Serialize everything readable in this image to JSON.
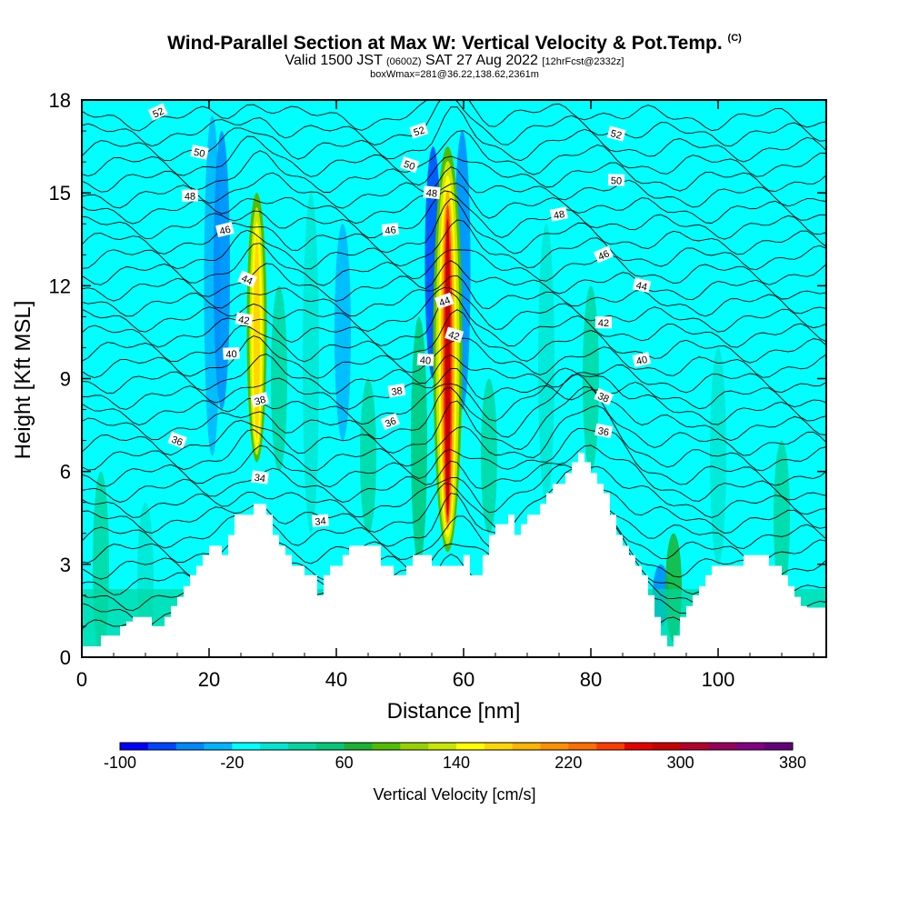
{
  "title": {
    "main": "Wind-Parallel Section at Max W: Vertical Velocity & Pot.Temp.",
    "copyright": "(C)",
    "valid_prefix": "Valid 1500 JST",
    "valid_utc": "(0600Z)",
    "valid_date": "SAT 27 Aug 2022",
    "forecast": "[12hrFcst@2332z]",
    "box": "boxWmax=281@36.22,138.62,2361m"
  },
  "chart_data": {
    "type": "heatmap",
    "xlabel": "Distance [nm]",
    "ylabel": "Height [Kft MSL]",
    "xlim": [
      0,
      117
    ],
    "ylim": [
      0,
      18
    ],
    "x_ticks": [
      0,
      20,
      40,
      60,
      80,
      100
    ],
    "y_ticks": [
      0,
      3,
      6,
      9,
      12,
      15,
      18
    ],
    "field": "Vertical Velocity [cm/s]",
    "contour_field": "Potential Temperature",
    "colorbar": {
      "label": "Vertical Velocity [cm/s]",
      "tick_labels": [
        "-100",
        "-20",
        "60",
        "140",
        "220",
        "300",
        "380"
      ],
      "colors": [
        "#0000ff",
        "#0044ff",
        "#0088ff",
        "#00b4ff",
        "#00ffff",
        "#00e6d2",
        "#00d7a0",
        "#00c878",
        "#19b432",
        "#50be00",
        "#96d200",
        "#c8e600",
        "#ffff00",
        "#ffd700",
        "#ffb400",
        "#ff9100",
        "#ff6e00",
        "#ff3c00",
        "#e60000",
        "#c80000",
        "#b4002d",
        "#96005a",
        "#820082",
        "#64007d"
      ]
    },
    "terrain": [
      [
        0,
        0.35
      ],
      [
        3,
        0.35
      ],
      [
        3,
        0.7
      ],
      [
        6,
        0.7
      ],
      [
        6,
        1
      ],
      [
        7,
        1
      ],
      [
        7,
        1.15
      ],
      [
        8,
        1.15
      ],
      [
        8,
        1.3
      ],
      [
        10,
        1.3
      ],
      [
        10,
        1.3
      ],
      [
        11,
        1.3
      ],
      [
        11,
        1
      ],
      [
        13,
        1
      ],
      [
        13,
        1.3
      ],
      [
        14,
        1.3
      ],
      [
        14,
        1.65
      ],
      [
        15,
        1.65
      ],
      [
        15,
        1.95
      ],
      [
        16,
        1.95
      ],
      [
        16,
        2.3
      ],
      [
        17,
        2.3
      ],
      [
        17,
        2.65
      ],
      [
        18,
        2.65
      ],
      [
        18,
        2.95
      ],
      [
        19,
        2.95
      ],
      [
        19,
        3.3
      ],
      [
        20,
        3.3
      ],
      [
        20,
        3.6
      ],
      [
        22,
        3.6
      ],
      [
        22,
        3.3
      ],
      [
        23,
        3.3
      ],
      [
        23,
        3.95
      ],
      [
        24,
        3.95
      ],
      [
        24,
        4.6
      ],
      [
        27,
        4.6
      ],
      [
        27,
        4.95
      ],
      [
        29,
        4.95
      ],
      [
        29,
        4.6
      ],
      [
        30,
        4.6
      ],
      [
        30,
        3.95
      ],
      [
        31,
        3.95
      ],
      [
        31,
        3.6
      ],
      [
        32,
        3.6
      ],
      [
        32,
        3.3
      ],
      [
        33,
        3.3
      ],
      [
        33,
        2.95
      ],
      [
        35,
        2.95
      ],
      [
        35,
        2.65
      ],
      [
        37,
        2.65
      ],
      [
        37,
        2
      ],
      [
        38,
        2
      ],
      [
        38,
        2.65
      ],
      [
        39,
        2.65
      ],
      [
        39,
        2.95
      ],
      [
        41,
        2.95
      ],
      [
        41,
        3.3
      ],
      [
        42,
        3.3
      ],
      [
        42,
        3.6
      ],
      [
        47,
        3.6
      ],
      [
        47,
        2.95
      ],
      [
        49,
        2.95
      ],
      [
        49,
        2.65
      ],
      [
        51,
        2.65
      ],
      [
        51,
        2.95
      ],
      [
        52,
        2.95
      ],
      [
        52,
        3.3
      ],
      [
        55,
        3.3
      ],
      [
        55,
        2.95
      ],
      [
        60,
        2.95
      ],
      [
        60,
        3.3
      ],
      [
        61,
        3.3
      ],
      [
        61,
        2.65
      ],
      [
        63,
        2.65
      ],
      [
        63,
        3.3
      ],
      [
        64,
        3.3
      ],
      [
        64,
        3.95
      ],
      [
        65,
        3.95
      ],
      [
        65,
        4.3
      ],
      [
        67,
        4.3
      ],
      [
        67,
        4.6
      ],
      [
        68,
        4.6
      ],
      [
        68,
        3.95
      ],
      [
        69,
        3.95
      ],
      [
        69,
        4.3
      ],
      [
        70,
        4.3
      ],
      [
        70,
        4.6
      ],
      [
        72,
        4.6
      ],
      [
        72,
        4.95
      ],
      [
        73,
        4.95
      ],
      [
        73,
        5.3
      ],
      [
        74,
        5.3
      ],
      [
        74,
        5.6
      ],
      [
        76,
        5.6
      ],
      [
        76,
        5.95
      ],
      [
        77,
        5.95
      ],
      [
        77,
        6.3
      ],
      [
        78,
        6.3
      ],
      [
        78,
        6.6
      ],
      [
        79,
        6.6
      ],
      [
        79,
        6.3
      ],
      [
        80,
        6.3
      ],
      [
        80,
        5.95
      ],
      [
        81,
        5.95
      ],
      [
        81,
        5.6
      ],
      [
        82,
        5.6
      ],
      [
        82,
        5.3
      ],
      [
        83,
        5.3
      ],
      [
        83,
        4.6
      ],
      [
        84,
        4.6
      ],
      [
        84,
        3.95
      ],
      [
        85,
        3.95
      ],
      [
        85,
        3.6
      ],
      [
        86,
        3.6
      ],
      [
        86,
        3.3
      ],
      [
        87,
        3.3
      ],
      [
        87,
        2.95
      ],
      [
        88,
        2.95
      ],
      [
        88,
        2.65
      ],
      [
        89,
        2.65
      ],
      [
        89,
        2
      ],
      [
        90,
        2
      ],
      [
        90,
        1.3
      ],
      [
        91,
        1.3
      ],
      [
        91,
        0.7
      ],
      [
        92,
        0.7
      ],
      [
        92,
        0.35
      ],
      [
        93,
        0.35
      ],
      [
        93,
        0.7
      ],
      [
        94,
        0.7
      ],
      [
        94,
        1.3
      ],
      [
        95,
        1.3
      ],
      [
        95,
        1.65
      ],
      [
        96,
        1.65
      ],
      [
        96,
        2
      ],
      [
        97,
        2
      ],
      [
        97,
        2.3
      ],
      [
        98,
        2.3
      ],
      [
        98,
        2.65
      ],
      [
        99,
        2.65
      ],
      [
        99,
        2.95
      ],
      [
        104,
        2.95
      ],
      [
        104,
        3.3
      ],
      [
        108,
        3.3
      ],
      [
        108,
        2.95
      ],
      [
        110,
        2.95
      ],
      [
        110,
        2.65
      ],
      [
        111,
        2.65
      ],
      [
        111,
        2.3
      ],
      [
        112,
        2.3
      ],
      [
        112,
        1.95
      ],
      [
        113,
        1.95
      ],
      [
        113,
        1.65
      ],
      [
        114,
        1.65
      ],
      [
        114,
        1.6
      ],
      [
        117,
        1.6
      ]
    ],
    "updrafts": [
      {
        "x": 27.5,
        "y_bottom": 6.3,
        "y_top": 15.0,
        "peak_cm_s": 150
      },
      {
        "x": 57.5,
        "y_bottom": 3.4,
        "y_top": 16.5,
        "peak_cm_s": 281
      }
    ],
    "contour_labels": [
      {
        "text": "52",
        "x": 12,
        "y": 17.6
      },
      {
        "text": "50",
        "x": 18.5,
        "y": 16.3
      },
      {
        "text": "48",
        "x": 17,
        "y": 14.9
      },
      {
        "text": "46",
        "x": 22.5,
        "y": 13.8
      },
      {
        "text": "44",
        "x": 26,
        "y": 12.2
      },
      {
        "text": "42",
        "x": 25.5,
        "y": 10.9
      },
      {
        "text": "40",
        "x": 23.5,
        "y": 9.8
      },
      {
        "text": "38",
        "x": 28,
        "y": 8.3
      },
      {
        "text": "36",
        "x": 15,
        "y": 7.0
      },
      {
        "text": "34",
        "x": 28,
        "y": 5.8
      },
      {
        "text": "34",
        "x": 37.5,
        "y": 4.4
      },
      {
        "text": "52",
        "x": 53,
        "y": 17.0
      },
      {
        "text": "50",
        "x": 51.5,
        "y": 15.9
      },
      {
        "text": "48",
        "x": 55,
        "y": 15.0
      },
      {
        "text": "46",
        "x": 48.5,
        "y": 13.8
      },
      {
        "text": "44",
        "x": 57,
        "y": 11.5
      },
      {
        "text": "42",
        "x": 58.5,
        "y": 10.4
      },
      {
        "text": "40",
        "x": 54,
        "y": 9.6
      },
      {
        "text": "38",
        "x": 49.5,
        "y": 8.6
      },
      {
        "text": "36",
        "x": 48.5,
        "y": 7.6
      },
      {
        "text": "52",
        "x": 84,
        "y": 16.9
      },
      {
        "text": "50",
        "x": 84,
        "y": 15.4
      },
      {
        "text": "48",
        "x": 75,
        "y": 14.3
      },
      {
        "text": "46",
        "x": 82,
        "y": 13.0
      },
      {
        "text": "44",
        "x": 88,
        "y": 12.0
      },
      {
        "text": "42",
        "x": 82,
        "y": 10.8
      },
      {
        "text": "40",
        "x": 88,
        "y": 9.6
      },
      {
        "text": "38",
        "x": 82,
        "y": 8.4
      },
      {
        "text": "36",
        "x": 82,
        "y": 7.3
      }
    ]
  }
}
